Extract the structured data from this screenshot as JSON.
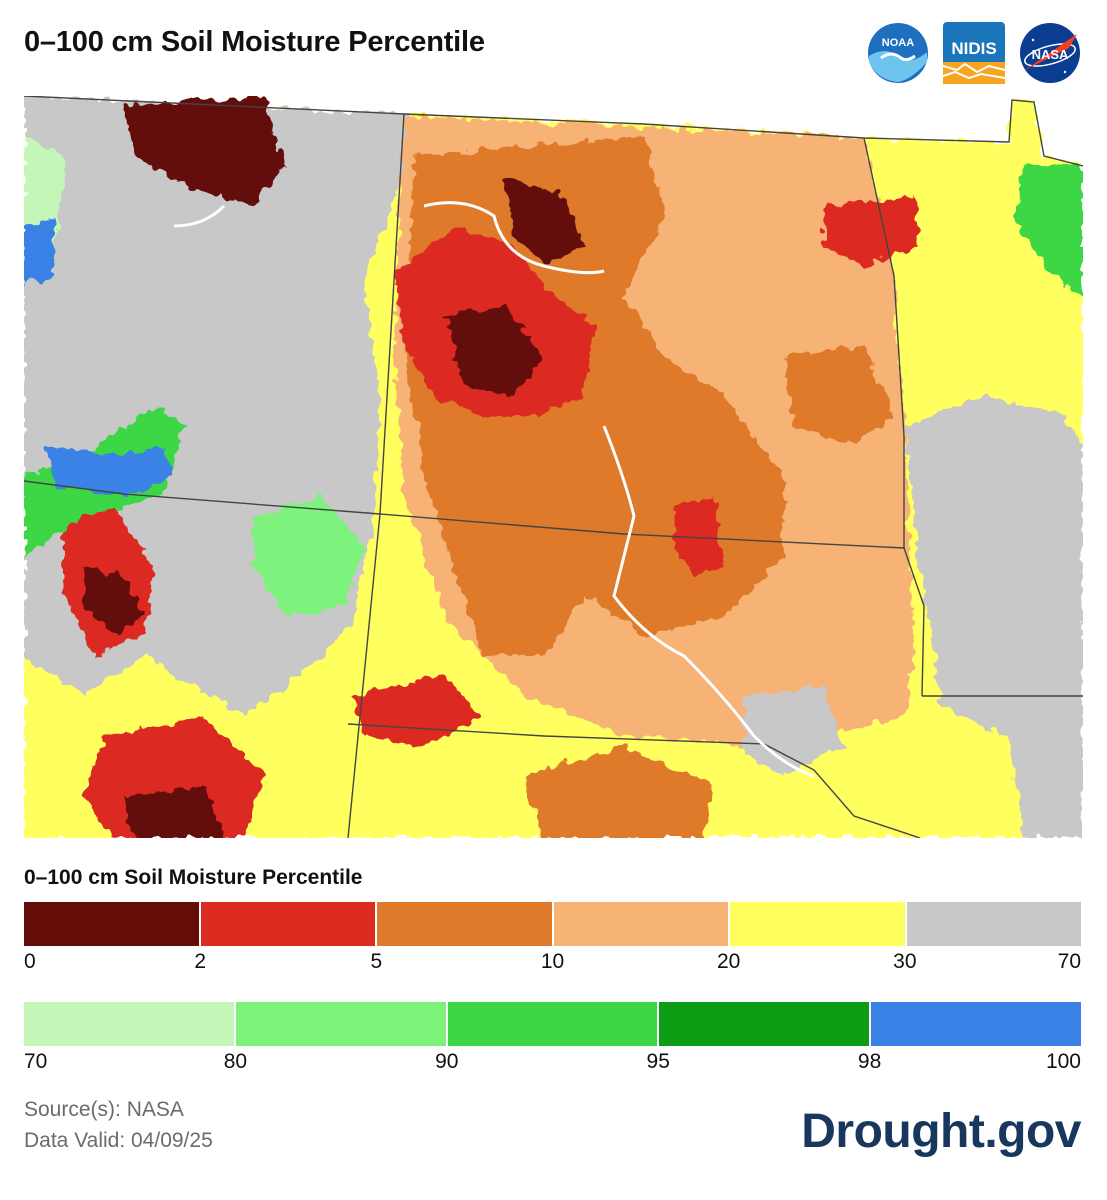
{
  "header": {
    "title": "0–100 cm Soil Moisture Percentile"
  },
  "logos": [
    {
      "name": "noaa-logo",
      "text": "NOAA",
      "color": "#1e6fc0"
    },
    {
      "name": "nidis-logo",
      "text": "NIDIS",
      "color": "#1b75bb"
    },
    {
      "name": "nasa-logo",
      "text": "NASA",
      "color": "#0b3d91"
    }
  ],
  "legend": {
    "title": "0–100 cm Soil Moisture Percentile",
    "dry_scale": {
      "colors": [
        "#640d08",
        "#dc2b21",
        "#df7a2c",
        "#f6b374",
        "#ffff5e",
        "#c8c8c8"
      ],
      "ticks": [
        "0",
        "2",
        "5",
        "10",
        "20",
        "30",
        "70"
      ]
    },
    "wet_scale": {
      "colors": [
        "#c4f7b7",
        "#7df27b",
        "#3dd644",
        "#0d9c14",
        "#3b82e6"
      ],
      "ticks": [
        "70",
        "80",
        "90",
        "95",
        "98",
        "100"
      ]
    }
  },
  "footer": {
    "source": "Source(s): NASA",
    "data_valid": "Data Valid: 04/09/25",
    "brand": "Drought.gov"
  }
}
